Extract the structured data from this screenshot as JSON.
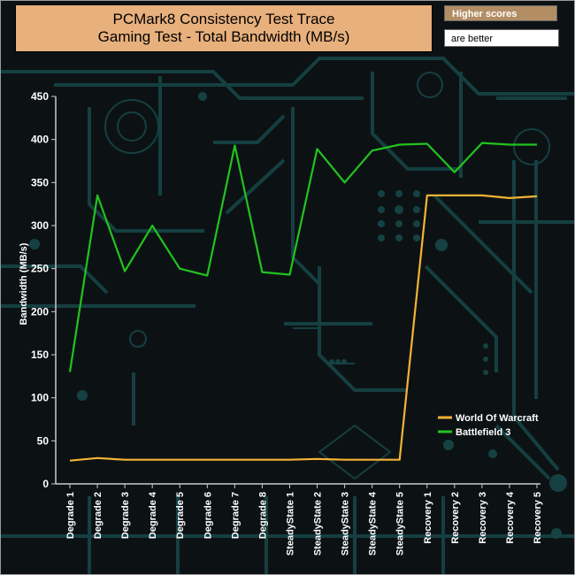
{
  "chart_data": {
    "type": "line",
    "title_lines": [
      "PCMark8 Consistency Test Trace",
      "Gaming Test - Total Bandwidth (MB/s)"
    ],
    "notes": [
      "Higher scores",
      "are better"
    ],
    "ylabel": "Bandwidth (MB/s)",
    "xlabel": "",
    "ylim": [
      0,
      450
    ],
    "yticks": [
      0,
      50,
      100,
      150,
      200,
      250,
      300,
      350,
      400,
      450
    ],
    "grid": false,
    "legend_position": "bottom-right",
    "categories": [
      "Degrade 1",
      "Degrade 2",
      "Degrade 3",
      "Degrade 4",
      "Degrade 5",
      "Degrade 6",
      "Degrade 7",
      "Degrade 8",
      "SteadyState 1",
      "SteadyState 2",
      "SteadyState 3",
      "SteadyState 4",
      "SteadyState 5",
      "Recovery 1",
      "Recovery 2",
      "Recovery 3",
      "Recovery 4",
      "Recovery 5"
    ],
    "series": [
      {
        "name": "World Of Warcraft",
        "color": "#f5b335",
        "values": [
          27,
          30,
          28,
          28,
          28,
          28,
          28,
          28,
          28,
          29,
          28,
          28,
          28,
          335,
          335,
          335,
          332,
          334
        ]
      },
      {
        "name": "Battlefield 3",
        "color": "#22c31e",
        "values": [
          130,
          335,
          247,
          300,
          250,
          242,
          393,
          246,
          243,
          389,
          350,
          387,
          394,
          395,
          362,
          396,
          394,
          394
        ]
      }
    ]
  },
  "colors": {
    "background": "#0c1214",
    "circuit": "#174446",
    "title_bg": "#e8b07d"
  }
}
